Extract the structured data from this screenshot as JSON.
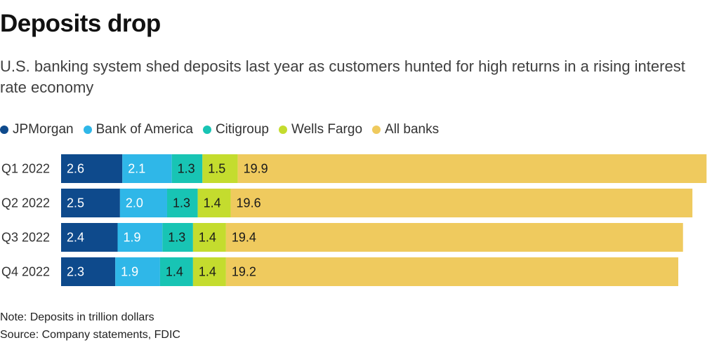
{
  "header": {
    "title": "Deposits drop",
    "subtitle": "U.S. banking system shed deposits last year as customers hunted for high returns in a rising interest rate economy"
  },
  "footer": {
    "note": "Note: Deposits in trillion dollars",
    "source": "Source: Company statements, FDIC"
  },
  "chart_data": {
    "type": "bar",
    "orientation": "horizontal",
    "stacked": true,
    "categories": [
      "Q1 2022",
      "Q2 2022",
      "Q3 2022",
      "Q4 2022"
    ],
    "series": [
      {
        "name": "JPMorgan",
        "color": "#0e4a8c",
        "label_color": "#ffffff",
        "values": [
          2.6,
          2.5,
          2.4,
          2.3
        ]
      },
      {
        "name": "Bank of America",
        "color": "#2fb7e8",
        "label_color": "#ffffff",
        "values": [
          2.1,
          2.0,
          1.9,
          1.9
        ]
      },
      {
        "name": "Citigroup",
        "color": "#18c4b4",
        "label_color": "#1a1a1a",
        "values": [
          1.3,
          1.3,
          1.3,
          1.4
        ]
      },
      {
        "name": "Wells Fargo",
        "color": "#c4dc2e",
        "label_color": "#1a1a1a",
        "values": [
          1.5,
          1.4,
          1.4,
          1.4
        ]
      },
      {
        "name": "All banks",
        "color": "#efca5e",
        "label_color": "#1a1a1a",
        "values": [
          19.9,
          19.6,
          19.4,
          19.2
        ]
      }
    ],
    "legend_position": "top-left",
    "grid": false
  }
}
